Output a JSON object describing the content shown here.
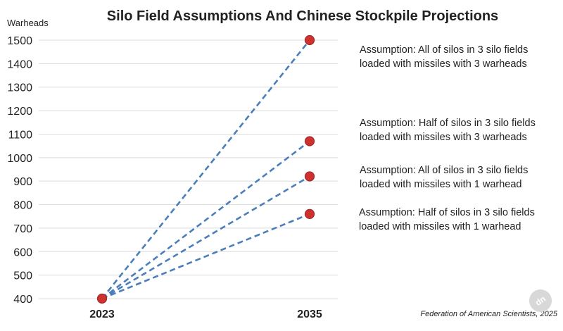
{
  "chart_data": {
    "type": "line",
    "title": "Silo Field Assumptions And Chinese Stockpile Projections",
    "ylabel": "Warheads",
    "xlabel": "",
    "categories": [
      "2023",
      "2035"
    ],
    "ylim": [
      400,
      1500
    ],
    "yticks": [
      400,
      500,
      600,
      700,
      800,
      900,
      1000,
      1100,
      1200,
      1300,
      1400,
      1500
    ],
    "grid": true,
    "series": [
      {
        "values": [
          400,
          1500
        ],
        "annotation": [
          "Assumption: All of silos in 3 silo fields",
          "loaded with missiles with 3 warheads"
        ]
      },
      {
        "values": [
          400,
          1070
        ],
        "annotation": [
          "Assumption: Half of silos in 3 silo fields",
          "loaded with missiles with 3 warheads"
        ]
      },
      {
        "values": [
          400,
          920
        ],
        "annotation": [
          "Assumption: All of silos in 3 silo fields",
          "loaded with missiles with 1 warhead"
        ]
      },
      {
        "values": [
          400,
          760
        ],
        "annotation": [
          "Assumption: Half of silos in 3 silo fields",
          "loaded with missiles with 1 warhead"
        ]
      }
    ],
    "source": "Federation of American Scientists, 2025",
    "colors": {
      "line": "#4a7ebb",
      "marker_fill": "#d0312d",
      "marker_stroke": "#9c2a2a",
      "grid": "#dcdcdc"
    }
  },
  "watermark": {
    "text": "dn",
    "color": "#d8d8d8"
  }
}
